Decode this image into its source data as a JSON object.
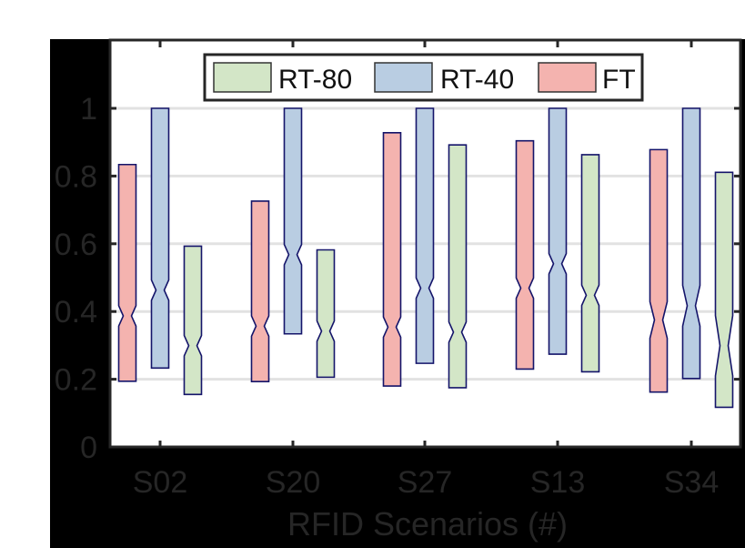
{
  "chart_data": {
    "type": "boxplot",
    "title": "",
    "xlabel": "RFID Scenarios (#)",
    "ylabel": "",
    "ylim": [
      0,
      1.15
    ],
    "yticks": [
      0,
      0.2,
      0.4,
      0.6,
      0.8,
      1
    ],
    "ytick_labels": [
      "0",
      "0.2",
      "0.4",
      "0.6",
      "0.8",
      "1"
    ],
    "grid": "horizontal",
    "legend_position": "top-center",
    "categories": [
      "S02",
      "S20",
      "S27",
      "S13",
      "S34"
    ],
    "legend": [
      {
        "name": "RT-80",
        "color": "#D3E6C7"
      },
      {
        "name": "RT-40",
        "color": "#B9CDE2"
      },
      {
        "name": "FT",
        "color": "#F4B3AF"
      }
    ],
    "series": [
      {
        "name": "FT",
        "color": "#F4B3AF",
        "offset": -36,
        "boxes": [
          {
            "top": 0.834,
            "bottom": 0.194,
            "median": 0.387,
            "notch": 0.03
          },
          {
            "top": 0.726,
            "bottom": 0.193,
            "median": 0.357,
            "notch": 0.03
          },
          {
            "top": 0.928,
            "bottom": 0.18,
            "median": 0.354,
            "notch": 0.03
          },
          {
            "top": 0.904,
            "bottom": 0.23,
            "median": 0.469,
            "notch": 0.03
          },
          {
            "top": 0.878,
            "bottom": 0.162,
            "median": 0.375,
            "notch": 0.054
          }
        ]
      },
      {
        "name": "RT-40",
        "color": "#B9CDE2",
        "offset": 0,
        "boxes": [
          {
            "top": 1.0,
            "bottom": 0.233,
            "median": 0.463,
            "notch": 0.03
          },
          {
            "top": 1.0,
            "bottom": 0.334,
            "median": 0.568,
            "notch": 0.03
          },
          {
            "top": 1.0,
            "bottom": 0.247,
            "median": 0.469,
            "notch": 0.03
          },
          {
            "top": 1.0,
            "bottom": 0.274,
            "median": 0.541,
            "notch": 0.03
          },
          {
            "top": 1.0,
            "bottom": 0.202,
            "median": 0.417,
            "notch": 0.06
          }
        ]
      },
      {
        "name": "RT-80",
        "color": "#D3E6C7",
        "offset": 36,
        "boxes": [
          {
            "top": 0.593,
            "bottom": 0.155,
            "median": 0.299,
            "notch": 0.03
          },
          {
            "top": 0.582,
            "bottom": 0.206,
            "median": 0.342,
            "notch": 0.03
          },
          {
            "top": 0.892,
            "bottom": 0.175,
            "median": 0.339,
            "notch": 0.03
          },
          {
            "top": 0.863,
            "bottom": 0.222,
            "median": 0.448,
            "notch": 0.03
          },
          {
            "top": 0.811,
            "bottom": 0.117,
            "median": 0.299,
            "notch": 0.089
          }
        ]
      }
    ]
  },
  "style": {
    "outline_color": "#14146A",
    "grid_color": "#E2E2E2",
    "axis_color": "#262626",
    "tick_label_color": "#262626",
    "figure_background": "#000000",
    "axes_background": "#FFFFFF"
  }
}
